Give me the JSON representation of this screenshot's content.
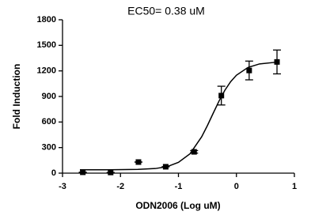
{
  "chart_data": {
    "type": "scatter",
    "title": "EC50= 0.38 uM",
    "xlabel": "ODN2006 (Log uM)",
    "ylabel": "Fold Induction",
    "xlim": [
      -3,
      1
    ],
    "xticks": [
      -3,
      -2,
      -1,
      0,
      1
    ],
    "ylim": [
      0,
      1800
    ],
    "yticks": [
      0,
      300,
      600,
      900,
      1200,
      1500,
      1800
    ],
    "series": [
      {
        "type": "scatter",
        "color": "#000000",
        "x": [
          -2.65,
          -2.17,
          -1.69,
          -1.22,
          -0.73,
          -0.26,
          0.22,
          0.7
        ],
        "values": [
          10,
          8,
          130,
          75,
          250,
          910,
          1205,
          1305
        ],
        "errors": [
          0,
          0,
          0,
          0,
          15,
          110,
          110,
          140
        ]
      },
      {
        "type": "line",
        "color": "#000000",
        "x": [
          -2.7,
          -2.2,
          -1.7,
          -1.4,
          -1.2,
          -1.0,
          -0.8,
          -0.6,
          -0.5,
          -0.4,
          -0.3,
          -0.2,
          -0.1,
          0,
          0.2,
          0.4,
          0.7
        ],
        "values": [
          40,
          40,
          44,
          54,
          75,
          127,
          228,
          426,
          559,
          704,
          846,
          972,
          1073,
          1149,
          1241,
          1282,
          1303
        ]
      }
    ]
  }
}
